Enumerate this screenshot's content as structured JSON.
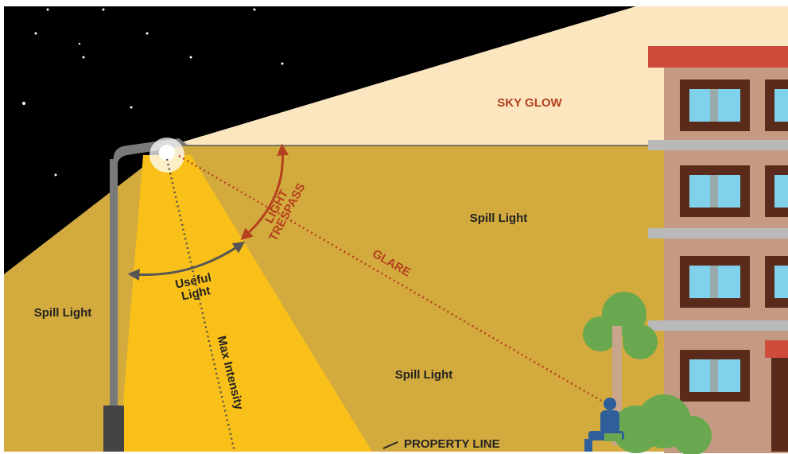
{
  "labels": {
    "sky_glow": "SKY GLOW",
    "spill_light": [
      "Spill Light",
      "Spill Light",
      "Spill Light"
    ],
    "light_trespass": [
      "LIGHT",
      "TRESPASS"
    ],
    "glare": "GLARE",
    "useful_light": [
      "Useful",
      "Light"
    ],
    "max_intensity": "Max Intensity",
    "property_line": "PROPERTY LINE"
  }
}
